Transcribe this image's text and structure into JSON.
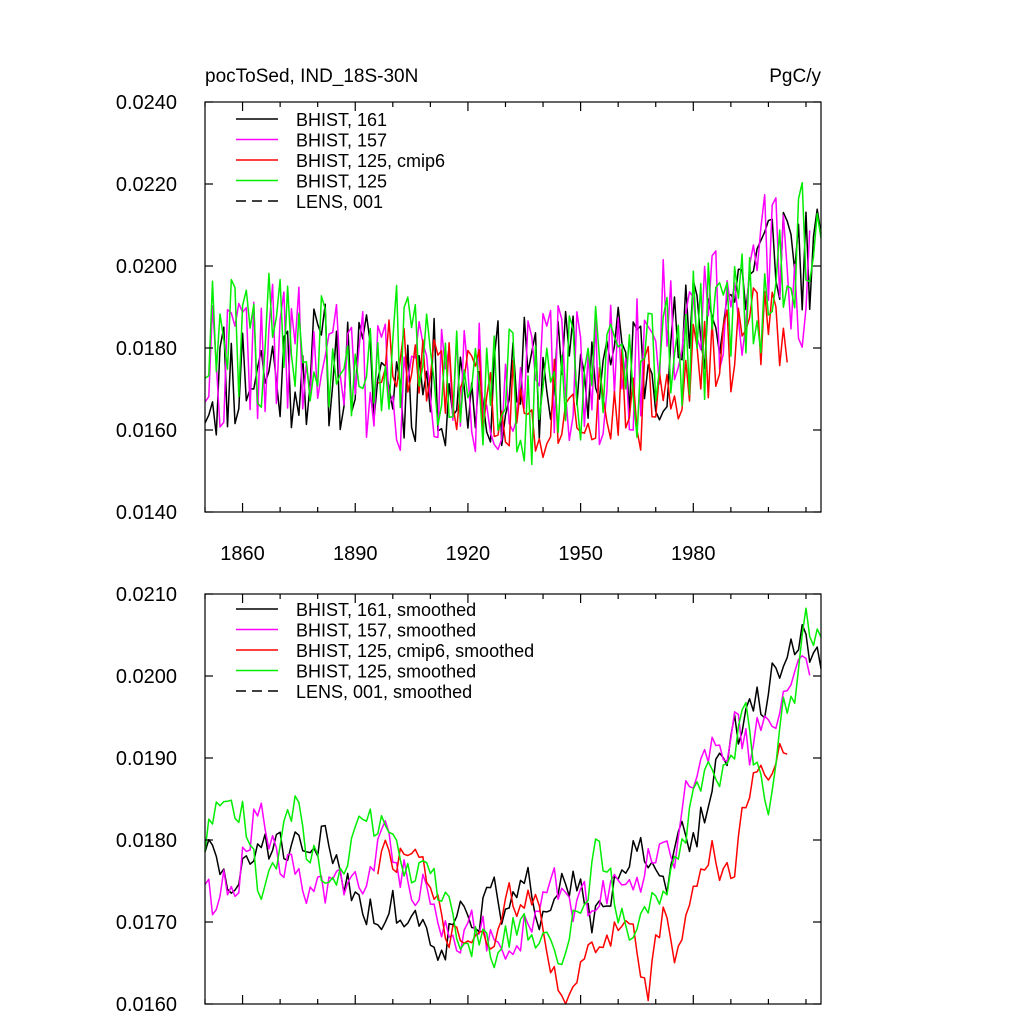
{
  "chart_data": [
    {
      "type": "line",
      "title_left": "pocToSed, IND_18S-30N",
      "title_right": "PgC/y",
      "xlabel": "",
      "ylabel": "",
      "xlim": [
        1850,
        2014
      ],
      "ylim": [
        0.014,
        0.024
      ],
      "x_major_ticks": [
        1860,
        1890,
        1920,
        1950,
        1980
      ],
      "x_tick_labels": [
        "1860",
        "1890",
        "1920",
        "1950",
        "1980"
      ],
      "y_ticks": [
        0.014,
        0.016,
        0.018,
        0.02,
        0.022,
        0.024
      ],
      "y_tick_labels": [
        "0.0140",
        "0.0160",
        "0.0180",
        "0.0200",
        "0.0220",
        "0.0240"
      ],
      "legend": "top-left",
      "series": [
        {
          "name": "BHIST, 161",
          "color": "#000000",
          "dash": "solid",
          "start": 1850,
          "end": 2014,
          "seed": 11,
          "mode": "raw",
          "endpoints": [
            [
              1850,
              0.017
            ],
            [
              1855,
              0.0174
            ],
            [
              1880,
              0.0176
            ],
            [
              1900,
              0.0173
            ],
            [
              1920,
              0.017
            ],
            [
              1940,
              0.0173
            ],
            [
              1960,
              0.0177
            ],
            [
              1975,
              0.0179
            ],
            [
              1985,
              0.0188
            ],
            [
              1995,
              0.0198
            ],
            [
              2005,
              0.0207
            ],
            [
              2014,
              0.0198
            ]
          ],
          "amp": 0.0016
        },
        {
          "name": "BHIST, 157",
          "color": "#ff00ff",
          "dash": "solid",
          "start": 1850,
          "end": 2011,
          "seed": 22,
          "mode": "raw",
          "endpoints": [
            [
              1850,
              0.0176
            ],
            [
              1865,
              0.018
            ],
            [
              1880,
              0.0176
            ],
            [
              1900,
              0.0173
            ],
            [
              1920,
              0.017
            ],
            [
              1940,
              0.0172
            ],
            [
              1960,
              0.0175
            ],
            [
              1975,
              0.0186
            ],
            [
              1990,
              0.0194
            ],
            [
              2000,
              0.02
            ],
            [
              2011,
              0.0196
            ]
          ],
          "amp": 0.0018
        },
        {
          "name": "BHIST, 125, cmip6",
          "color": "#ff0000",
          "dash": "solid",
          "start": 1896,
          "end": 2005,
          "seed": 33,
          "mode": "raw",
          "endpoints": [
            [
              1896,
              0.0178
            ],
            [
              1910,
              0.0172
            ],
            [
              1925,
              0.0168
            ],
            [
              1940,
              0.0166
            ],
            [
              1955,
              0.0168
            ],
            [
              1965,
              0.0166
            ],
            [
              1975,
              0.0175
            ],
            [
              1985,
              0.0176
            ],
            [
              1995,
              0.0184
            ],
            [
              2005,
              0.0188
            ]
          ],
          "amp": 0.0013
        },
        {
          "name": "BHIST, 125",
          "color": "#00ee00",
          "dash": "solid",
          "start": 1850,
          "end": 2014,
          "seed": 44,
          "mode": "raw",
          "endpoints": [
            [
              1850,
              0.0181
            ],
            [
              1870,
              0.0182
            ],
            [
              1890,
              0.018
            ],
            [
              1905,
              0.0178
            ],
            [
              1920,
              0.0169
            ],
            [
              1940,
              0.0168
            ],
            [
              1955,
              0.0176
            ],
            [
              1965,
              0.0169
            ],
            [
              1975,
              0.0178
            ],
            [
              1985,
              0.0186
            ],
            [
              2000,
              0.0196
            ],
            [
              2010,
              0.0205
            ],
            [
              2014,
              0.02
            ]
          ],
          "amp": 0.0017
        },
        {
          "name": "LENS, 001",
          "color": "#000000",
          "dash": "dashed",
          "start": 0,
          "end": 0,
          "seed": 0,
          "mode": "none",
          "endpoints": [],
          "amp": 0
        }
      ]
    },
    {
      "type": "line",
      "title_left": "",
      "title_right": "",
      "xlabel": "",
      "ylabel": "",
      "xlim": [
        1850,
        2014
      ],
      "ylim": [
        0.016,
        0.021
      ],
      "x_major_ticks": [
        1860,
        1890,
        1920,
        1950,
        1980
      ],
      "x_tick_labels": [],
      "y_ticks": [
        0.016,
        0.017,
        0.018,
        0.019,
        0.02,
        0.021
      ],
      "y_tick_labels": [
        "0.0160",
        "0.0170",
        "0.0180",
        "0.0190",
        "0.0200",
        "0.0210"
      ],
      "legend": "top-left",
      "series": [
        {
          "name": "BHIST, 161, smoothed",
          "color": "#000000",
          "dash": "solid",
          "start": 1850,
          "end": 2014,
          "seed": 51,
          "mode": "smooth",
          "endpoints": [
            [
              1850,
              0.018
            ],
            [
              1852,
              0.0177
            ],
            [
              1856,
              0.0174
            ],
            [
              1862,
              0.0176
            ],
            [
              1866,
              0.0181
            ],
            [
              1872,
              0.0177
            ],
            [
              1878,
              0.0175
            ],
            [
              1882,
              0.018
            ],
            [
              1888,
              0.0176
            ],
            [
              1895,
              0.0172
            ],
            [
              1905,
              0.0171
            ],
            [
              1912,
              0.0169
            ],
            [
              1920,
              0.0173
            ],
            [
              1930,
              0.0171
            ],
            [
              1940,
              0.0173
            ],
            [
              1945,
              0.018
            ],
            [
              1950,
              0.0176
            ],
            [
              1955,
              0.017
            ],
            [
              1962,
              0.0175
            ],
            [
              1967,
              0.0179
            ],
            [
              1970,
              0.0172
            ],
            [
              1975,
              0.0176
            ],
            [
              1980,
              0.018
            ],
            [
              1985,
              0.0187
            ],
            [
              1990,
              0.0194
            ],
            [
              1995,
              0.0193
            ],
            [
              2000,
              0.0198
            ],
            [
              2005,
              0.0204
            ],
            [
              2012,
              0.0204
            ],
            [
              2014,
              0.02
            ]
          ],
          "amp": 0.0006
        },
        {
          "name": "BHIST, 157, smoothed",
          "color": "#ff00ff",
          "dash": "solid",
          "start": 1850,
          "end": 2011,
          "seed": 62,
          "mode": "smooth",
          "endpoints": [
            [
              1850,
              0.0176
            ],
            [
              1853,
              0.0169
            ],
            [
              1858,
              0.0176
            ],
            [
              1865,
              0.0186
            ],
            [
              1870,
              0.0176
            ],
            [
              1878,
              0.0175
            ],
            [
              1885,
              0.0173
            ],
            [
              1892,
              0.0175
            ],
            [
              1897,
              0.0182
            ],
            [
              1902,
              0.0178
            ],
            [
              1910,
              0.0173
            ],
            [
              1918,
              0.0171
            ],
            [
              1925,
              0.0168
            ],
            [
              1935,
              0.017
            ],
            [
              1945,
              0.0172
            ],
            [
              1955,
              0.0171
            ],
            [
              1962,
              0.0175
            ],
            [
              1968,
              0.0178
            ],
            [
              1975,
              0.0181
            ],
            [
              1985,
              0.0191
            ],
            [
              1990,
              0.0195
            ],
            [
              1995,
              0.0191
            ],
            [
              2000,
              0.0197
            ],
            [
              2007,
              0.0202
            ],
            [
              2011,
              0.0196
            ]
          ],
          "amp": 0.0006
        },
        {
          "name": "BHIST, 125, cmip6, smoothed",
          "color": "#ff0000",
          "dash": "solid",
          "start": 1896,
          "end": 2005,
          "seed": 73,
          "mode": "smooth",
          "endpoints": [
            [
              1896,
              0.0177
            ],
            [
              1902,
              0.0179
            ],
            [
              1908,
              0.0174
            ],
            [
              1915,
              0.0168
            ],
            [
              1922,
              0.0167
            ],
            [
              1930,
              0.017
            ],
            [
              1938,
              0.0175
            ],
            [
              1942,
              0.0168
            ],
            [
              1947,
              0.0161
            ],
            [
              1955,
              0.0166
            ],
            [
              1962,
              0.0172
            ],
            [
              1968,
              0.0164
            ],
            [
              1972,
              0.017
            ],
            [
              1975,
              0.0165
            ],
            [
              1980,
              0.0175
            ],
            [
              1985,
              0.0178
            ],
            [
              1990,
              0.0176
            ],
            [
              1995,
              0.0184
            ],
            [
              2000,
              0.019
            ],
            [
              2005,
              0.0191
            ]
          ],
          "amp": 0.0005
        },
        {
          "name": "BHIST, 125, smoothed",
          "color": "#00ee00",
          "dash": "solid",
          "start": 1850,
          "end": 2014,
          "seed": 84,
          "mode": "smooth",
          "endpoints": [
            [
              1850,
              0.018
            ],
            [
              1855,
              0.0185
            ],
            [
              1860,
              0.0183
            ],
            [
              1865,
              0.0172
            ],
            [
              1870,
              0.018
            ],
            [
              1875,
              0.0184
            ],
            [
              1880,
              0.0176
            ],
            [
              1885,
              0.0178
            ],
            [
              1892,
              0.018
            ],
            [
              1900,
              0.0183
            ],
            [
              1907,
              0.0176
            ],
            [
              1915,
              0.0172
            ],
            [
              1920,
              0.0169
            ],
            [
              1930,
              0.0168
            ],
            [
              1940,
              0.017
            ],
            [
              1945,
              0.0165
            ],
            [
              1950,
              0.0174
            ],
            [
              1955,
              0.0182
            ],
            [
              1960,
              0.0172
            ],
            [
              1965,
              0.0167
            ],
            [
              1970,
              0.0175
            ],
            [
              1975,
              0.018
            ],
            [
              1980,
              0.0184
            ],
            [
              1985,
              0.0187
            ],
            [
              1990,
              0.0193
            ],
            [
              1995,
              0.0193
            ],
            [
              2000,
              0.0187
            ],
            [
              2005,
              0.0196
            ],
            [
              2010,
              0.0205
            ],
            [
              2014,
              0.0205
            ]
          ],
          "amp": 0.0006
        },
        {
          "name": "LENS, 001, smoothed",
          "color": "#000000",
          "dash": "dashed",
          "start": 0,
          "end": 0,
          "seed": 0,
          "mode": "none",
          "endpoints": [],
          "amp": 0
        }
      ]
    }
  ]
}
